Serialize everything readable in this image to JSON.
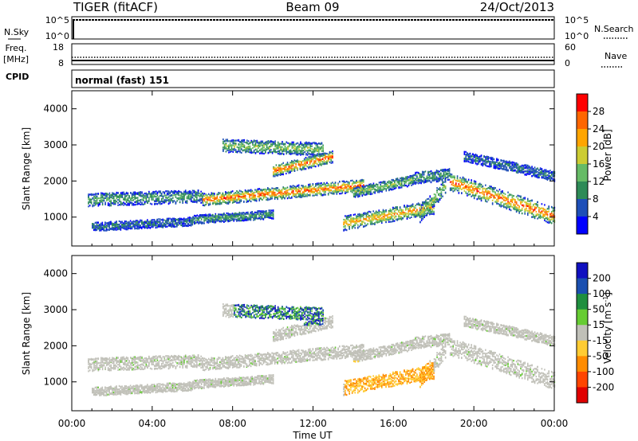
{
  "header": {
    "radar": "TIGER (fitACF)",
    "beam": "Beam 09",
    "date": "24/Oct/2013"
  },
  "strips": {
    "nsky": {
      "label": "N.Sky",
      "ticks": [
        "10^5",
        "10^0"
      ]
    },
    "nsearch": {
      "label": "N.Search",
      "ticks": [
        "10^5",
        "10^0"
      ]
    },
    "freq": {
      "label1": "Freq.",
      "label2": "[MHz]",
      "ticks": [
        "18",
        "8"
      ]
    },
    "nave": {
      "label": "Nave",
      "ticks": [
        "60",
        "0"
      ]
    },
    "cpid": {
      "label": "CPID",
      "value": "normal (fast) 151"
    }
  },
  "colors": {
    "power": [
      "#0000ff",
      "#1e4fb8",
      "#2e8b57",
      "#66bb66",
      "#cccc33",
      "#ffa500",
      "#ff6600",
      "#ff0000"
    ],
    "velocity": [
      "#1010c0",
      "#1a4fb0",
      "#1f8f3f",
      "#66cc33",
      "#c0c0b8",
      "#ffcc33",
      "#ff8c00",
      "#ff4500",
      "#e00000"
    ]
  },
  "chart_data": [
    {
      "type": "heatmap",
      "name": "power",
      "ylabel": "Slant Range [km]",
      "yticks": [
        "1000",
        "2000",
        "3000",
        "4000"
      ],
      "ylim": [
        200,
        4500
      ],
      "xlim_hours": [
        0,
        24
      ],
      "colorbar": {
        "label": "Power [dB]",
        "ticks": [
          "4",
          "8",
          "12",
          "16",
          "20",
          "24",
          "28"
        ],
        "range": [
          0,
          32
        ]
      }
    },
    {
      "type": "heatmap",
      "name": "velocity",
      "ylabel": "Slant Range [km]",
      "yticks": [
        "1000",
        "2000",
        "3000",
        "4000"
      ],
      "ylim": [
        200,
        4500
      ],
      "xlim_hours": [
        0,
        24
      ],
      "colorbar": {
        "label": "Velocity [m s",
        "label_sup": "-1",
        "label_end": "]",
        "ticks": [
          "200",
          "100",
          "50",
          "15",
          "-15",
          "-50",
          "-100",
          "-200"
        ]
      }
    }
  ],
  "xaxis": {
    "ticks": [
      "00:00",
      "04:00",
      "08:00",
      "12:00",
      "16:00",
      "20:00",
      "00:00"
    ],
    "label": "Time UT"
  }
}
